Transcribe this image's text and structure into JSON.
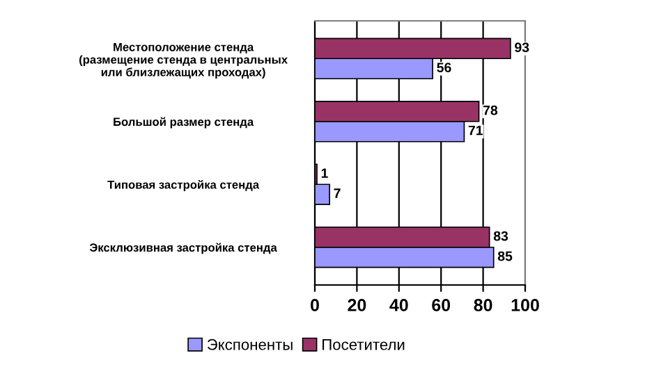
{
  "chart_data": {
    "type": "bar",
    "orientation": "horizontal",
    "categories": [
      "Местоположение стенда\n(размещение стенда в центральных\nили близлежащих проходах)",
      "Большой размер стенда",
      "Типовая застройка стенда",
      "Эксклюзивная застройка стенда"
    ],
    "series": [
      {
        "name": "Экспоненты",
        "color": "#9999ff",
        "values": [
          56,
          71,
          7,
          85
        ]
      },
      {
        "name": "Посетители",
        "color": "#993366",
        "values": [
          93,
          78,
          1,
          83
        ]
      }
    ],
    "xlim": [
      0,
      100
    ],
    "xticks": [
      0,
      20,
      40,
      60,
      80,
      100
    ],
    "grid": "x",
    "data_labels": true,
    "legend": "bottom"
  }
}
